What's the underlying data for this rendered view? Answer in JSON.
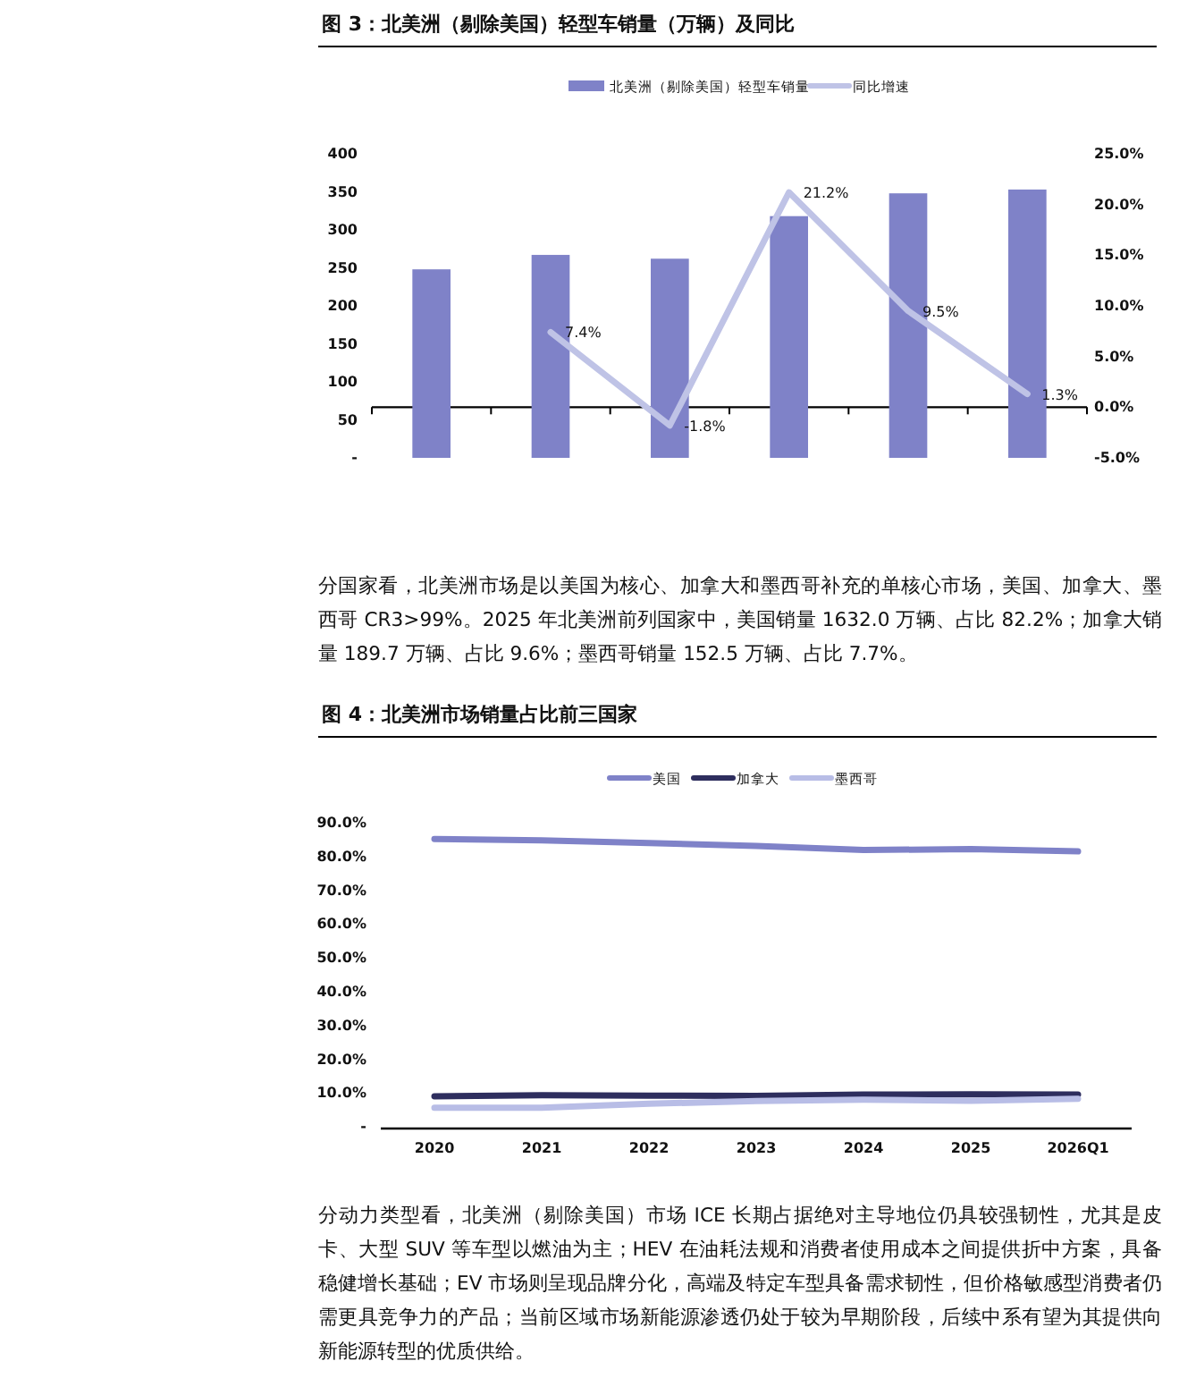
{
  "chart_data": [
    {
      "type": "bar",
      "title": "图 3：北美洲（剔除美国）轻型车销量（万辆）及同比",
      "categories": [
        null,
        null,
        null,
        null,
        null,
        null
      ],
      "series": [
        {
          "name": "北美洲（剔除美国）轻型车销量",
          "color": "#7f82c8",
          "values": [
            248,
            267,
            262,
            318,
            348,
            353
          ]
        },
        {
          "name": "同比增速",
          "type": "line",
          "axis": "y2",
          "color": "#bfc3e6",
          "values": [
            null,
            7.4,
            -1.8,
            21.2,
            9.5,
            1.3
          ],
          "value_labels": [
            null,
            "7.4%",
            "-1.8%",
            "21.2%",
            "9.5%",
            "1.3%"
          ]
        }
      ],
      "ylim": [
        0,
        400
      ],
      "yticks": [
        {
          "value": 0,
          "label": "-"
        },
        50,
        100,
        150,
        200,
        250,
        300,
        350,
        400
      ],
      "y2lim": [
        -5,
        25
      ],
      "y2ticks": [
        {
          "value": -5,
          "label": "-5.0%"
        },
        {
          "value": 0,
          "label": "0.0%"
        },
        {
          "value": 5,
          "label": "5.0%"
        },
        {
          "value": 10,
          "label": "10.0%"
        },
        {
          "value": 15,
          "label": "15.0%"
        },
        {
          "value": 20,
          "label": "20.0%"
        },
        {
          "value": 25,
          "label": "25.0%"
        }
      ],
      "tick_labels": "y",
      "legend": "top",
      "annotations": [
        "分国家看，北美洲市场是以美国为核心、加拿大和墨西哥补充的单核心市场，美国、加拿大、墨西哥 CR3>99%。2025 年北美洲前列国家中，美国销量 1632.0 万辆、占比 82.2%；加拿大销量 189.7 万辆、占比 9.6%；墨西哥销量 152.5 万辆、占比 7.7%。"
      ]
    },
    {
      "type": "line",
      "title": "图 4：北美洲市场销量占比前三国家",
      "categories": [
        "2020",
        "2021",
        "2022",
        "2023",
        "2024",
        "2025",
        "2026Q1"
      ],
      "series": [
        {
          "name": "美国",
          "color": "#7f82c8",
          "values": [
            85.2,
            84.8,
            84.0,
            83.1,
            81.9,
            82.2,
            81.5
          ]
        },
        {
          "name": "加拿大",
          "color": "#2e2e5e",
          "values": [
            9.0,
            9.3,
            9.2,
            9.1,
            9.5,
            9.6,
            9.5
          ]
        },
        {
          "name": "墨西哥",
          "color": "#b8bde6",
          "values": [
            5.6,
            5.6,
            6.8,
            7.6,
            8.0,
            7.7,
            8.3
          ]
        }
      ],
      "ylim": [
        0,
        90
      ],
      "yticks": [
        {
          "value": 0,
          "label": "-"
        },
        {
          "value": 10,
          "label": "10.0%"
        },
        {
          "value": 20,
          "label": "20.0%"
        },
        {
          "value": 30,
          "label": "30.0%"
        },
        {
          "value": 40,
          "label": "40.0%"
        },
        {
          "value": 50,
          "label": "50.0%"
        },
        {
          "value": 60,
          "label": "60.0%"
        },
        {
          "value": 70,
          "label": "70.0%"
        },
        {
          "value": 80,
          "label": "80.0%"
        },
        {
          "value": 90,
          "label": "90.0%"
        }
      ],
      "legend": "top",
      "line_style": "solid",
      "annotations": [
        "分动力类型看，北美洲（剔除美国）市场 ICE 长期占据绝对主导地位仍具较强韧性，尤其是皮卡、大型 SUV 等车型以燃油为主；HEV 在油耗法规和消费者使用成本之间提供折中方案，具备稳健增长基础；EV 市场则呈现品牌分化，高端及特定车型具备需求韧性，但价格敏感型消费者仍需更具竞争力的产品；当前区域市场新能源渗透仍处于较为早期阶段，后续中系有望为其提供向新能源转型的优质供给。"
      ]
    }
  ]
}
